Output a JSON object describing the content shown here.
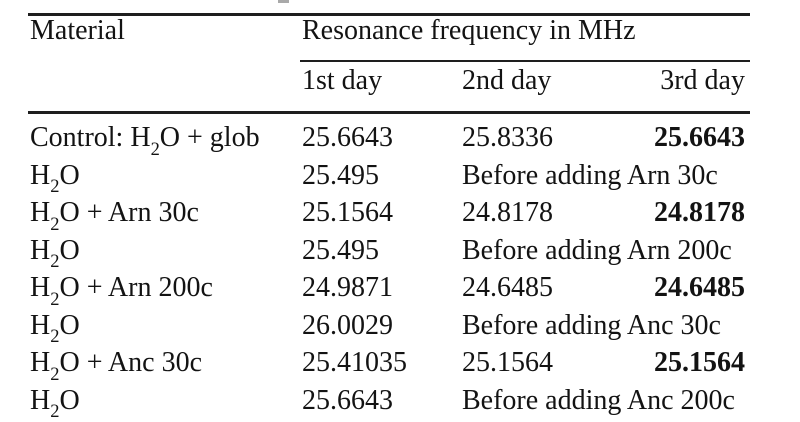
{
  "colors": {
    "text": "#131313",
    "rule": "#1e1e1e",
    "background": "#ffffff"
  },
  "table": {
    "columns": {
      "material": "Material",
      "group": "Resonance frequency in MHz",
      "day1": "1st day",
      "day2": "2nd day",
      "day3": "3rd day"
    },
    "rows": [
      {
        "material": {
          "pre": "Control: H",
          "sub": "2",
          "post": "O + glob"
        },
        "day1": "25.6643",
        "day2": "25.8336",
        "day3": "25.6643"
      },
      {
        "material": {
          "pre": "H",
          "sub": "2",
          "post": "O"
        },
        "day1": "25.495",
        "note": "Before adding Arn 30c"
      },
      {
        "material": {
          "pre": "H",
          "sub": "2",
          "post": "O + Arn 30c"
        },
        "day1": "25.1564",
        "day2": "24.8178",
        "day3": "24.8178"
      },
      {
        "material": {
          "pre": "H",
          "sub": "2",
          "post": "O"
        },
        "day1": "25.495",
        "note": "Before adding Arn 200c"
      },
      {
        "material": {
          "pre": "H",
          "sub": "2",
          "post": "O + Arn 200c"
        },
        "day1": "24.9871",
        "day2": "24.6485",
        "day3": "24.6485"
      },
      {
        "material": {
          "pre": "H",
          "sub": "2",
          "post": "O"
        },
        "day1": "26.0029",
        "note": "Before adding Anc 30c"
      },
      {
        "material": {
          "pre": "H",
          "sub": "2",
          "post": "O + Anc 30c"
        },
        "day1": "25.41035",
        "day2": "25.1564",
        "day3": "25.1564"
      },
      {
        "material": {
          "pre": "H",
          "sub": "2",
          "post": "O"
        },
        "day1": "25.6643",
        "note": "Before adding Anc 200c"
      }
    ]
  }
}
